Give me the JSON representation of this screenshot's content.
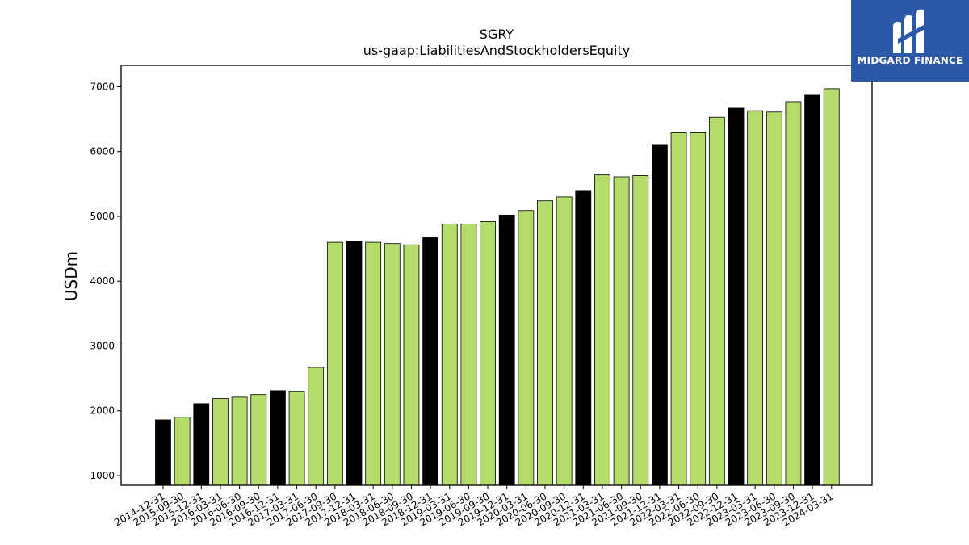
{
  "chart_data": {
    "type": "bar",
    "title": "SGRY",
    "subtitle": "us-gaap:LiabilitiesAndStockholdersEquity",
    "xlabel": "",
    "ylabel": "USDm",
    "ylim": [
      850,
      7330
    ],
    "yticks": [
      "1000",
      "2000",
      "3000",
      "4000",
      "5000",
      "6000",
      "7000"
    ],
    "grid": false,
    "colors": {
      "annual": "#000000",
      "quarterly": "#b3dc6a",
      "edge": "#000000"
    },
    "categories": [
      "2014-12-31",
      "2015-09-30",
      "2015-12-31",
      "2016-03-31",
      "2016-06-30",
      "2016-09-30",
      "2016-12-31",
      "2017-03-31",
      "2017-06-30",
      "2017-09-30",
      "2017-12-31",
      "2018-03-31",
      "2018-06-30",
      "2018-09-30",
      "2018-12-31",
      "2019-03-31",
      "2019-06-30",
      "2019-09-30",
      "2019-12-31",
      "2020-03-31",
      "2020-06-30",
      "2020-09-30",
      "2020-12-31",
      "2021-03-31",
      "2021-06-30",
      "2021-09-30",
      "2021-12-31",
      "2022-03-31",
      "2022-06-30",
      "2022-09-30",
      "2022-12-31",
      "2023-03-31",
      "2023-06-30",
      "2023-09-30",
      "2023-12-31",
      "2024-03-31"
    ],
    "values": [
      1860,
      1900,
      2110,
      2190,
      2210,
      2250,
      2310,
      2300,
      2670,
      4600,
      4620,
      4600,
      4580,
      4560,
      4670,
      4880,
      4880,
      4920,
      5020,
      5090,
      5240,
      5300,
      5400,
      5640,
      5610,
      5630,
      6110,
      6290,
      6290,
      6530,
      6670,
      6630,
      6610,
      6770,
      6870,
      6970
    ],
    "is_annual": [
      true,
      false,
      true,
      false,
      false,
      false,
      true,
      false,
      false,
      false,
      true,
      false,
      false,
      false,
      true,
      false,
      false,
      false,
      true,
      false,
      false,
      false,
      true,
      false,
      false,
      false,
      true,
      false,
      false,
      false,
      true,
      false,
      false,
      false,
      true,
      false
    ]
  },
  "logo": {
    "text": "MIDGARD FINANCE"
  }
}
